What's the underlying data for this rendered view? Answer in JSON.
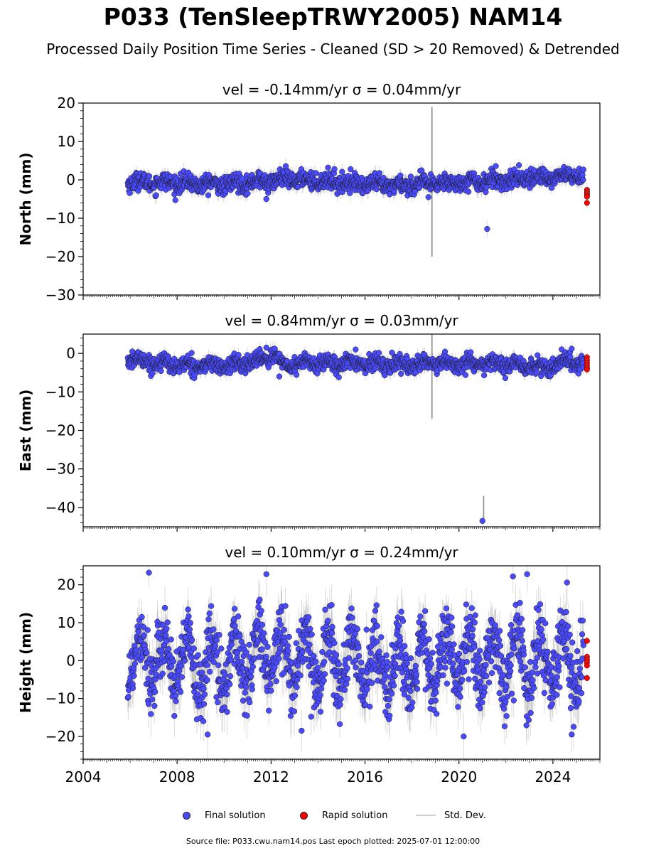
{
  "title": "P033 (TenSleepTRWY2005) NAM14",
  "subtitle": "Processed Daily Position Time Series - Cleaned (SD > 20 Removed) & Detrended",
  "footer": "Source file: P033.cwu.nam14.pos  Last epoch plotted: 2025-07-01 12:00:00",
  "legend": {
    "final": "Final solution",
    "rapid": "Rapid solution",
    "std": "Std. Dev."
  },
  "colors": {
    "final": "#4a4aff",
    "rapid": "#ff0000",
    "std": "#8c8c8c",
    "marker_edge": "#1a1a1a"
  },
  "chart_data": [
    {
      "type": "scatter",
      "title": "vel = -0.14mm/yr   σ = 0.04mm/yr",
      "ylabel": "North (mm)",
      "ylim": [
        -30,
        20
      ],
      "yticks": [
        20,
        10,
        0,
        -10,
        -20,
        -30
      ],
      "xlim": [
        2004,
        2026
      ],
      "x_start": 2005.9,
      "x_end_final": 2025.3,
      "rapid_x": 2025.45,
      "noise_std": 1.1,
      "err_std": 2.2,
      "seasonal_amp": 0.6,
      "trend": [
        [
          2005.9,
          -0.5
        ],
        [
          2010.0,
          -1.2
        ],
        [
          2013.0,
          0.2
        ],
        [
          2017.0,
          -1.5
        ],
        [
          2021.0,
          -0.3
        ],
        [
          2024.5,
          1.0
        ],
        [
          2025.3,
          1.2
        ]
      ],
      "outliers": [
        [
          2011.8,
          -5.0
        ],
        [
          2018.7,
          -4.5
        ],
        [
          2021.2,
          -12.8
        ],
        [
          2014.7,
          2.8
        ],
        [
          2023.2,
          2.5
        ]
      ],
      "big_error_bars": [
        [
          2018.85,
          -0.5,
          19.5
        ]
      ],
      "rapid_values": [
        -2.6,
        -3.1,
        -3.6,
        -4.0,
        -4.4,
        -6.0
      ]
    },
    {
      "type": "scatter",
      "title": "vel = 0.84mm/yr   σ = 0.03mm/yr",
      "ylabel": "East (mm)",
      "ylim": [
        -45,
        5
      ],
      "yticks": [
        0,
        -10,
        -20,
        -30,
        -40
      ],
      "xlim": [
        2004,
        2026
      ],
      "x_start": 2005.9,
      "x_end_final": 2025.3,
      "rapid_x": 2025.45,
      "noise_std": 1.0,
      "err_std": 2.0,
      "seasonal_amp": 0.7,
      "trend": [
        [
          2005.9,
          -1.5
        ],
        [
          2008.0,
          -3.0
        ],
        [
          2010.5,
          -3.2
        ],
        [
          2011.6,
          -1.5
        ],
        [
          2012.2,
          0.0
        ],
        [
          2012.45,
          -3.5
        ],
        [
          2013.5,
          -2.5
        ],
        [
          2015.0,
          -2.5
        ],
        [
          2018.0,
          -2.8
        ],
        [
          2022.0,
          -2.8
        ],
        [
          2023.5,
          -3.8
        ],
        [
          2024.7,
          -2.0
        ],
        [
          2025.3,
          -2.5
        ]
      ],
      "outliers": [
        [
          2011.8,
          1.5
        ],
        [
          2012.35,
          -6.0
        ],
        [
          2015.6,
          1.0
        ],
        [
          2024.8,
          1.2
        ],
        [
          2021.0,
          -43.5
        ]
      ],
      "big_error_bars": [
        [
          2018.85,
          -3.0,
          14.0
        ],
        [
          2021.05,
          -40.5,
          3.5
        ]
      ],
      "rapid_values": [
        -1.0,
        -1.8,
        -2.5,
        -3.2,
        -3.8,
        -4.2
      ]
    },
    {
      "type": "scatter",
      "title": "vel = 0.10mm/yr   σ = 0.24mm/yr",
      "ylabel": "Height (mm)",
      "ylim": [
        -26,
        25
      ],
      "yticks": [
        20,
        10,
        0,
        -10,
        -20
      ],
      "xlim": [
        2004,
        2026
      ],
      "xticks": [
        2004,
        2008,
        2012,
        2016,
        2020,
        2024
      ],
      "x_start": 2005.9,
      "x_end_final": 2025.3,
      "rapid_x": 2025.45,
      "noise_std": 4.5,
      "err_std": 6.5,
      "seasonal_amp": 7.0,
      "trend": [
        [
          2005.9,
          2.0
        ],
        [
          2009.0,
          -2.0
        ],
        [
          2012.0,
          1.5
        ],
        [
          2017.5,
          -2.0
        ],
        [
          2020.0,
          0.5
        ],
        [
          2025.3,
          -1.0
        ]
      ],
      "outliers": [
        [
          2006.8,
          23.2
        ],
        [
          2011.8,
          22.8
        ],
        [
          2022.3,
          22.2
        ],
        [
          2022.9,
          22.8
        ],
        [
          2024.6,
          20.6
        ],
        [
          2020.2,
          -20.0
        ],
        [
          2009.3,
          -19.5
        ],
        [
          2013.3,
          -18.5
        ],
        [
          2024.8,
          -19.5
        ]
      ],
      "big_error_bars": [],
      "rapid_values": [
        5.2,
        1.0,
        0.2,
        -0.5,
        -1.3,
        -4.6
      ]
    }
  ]
}
